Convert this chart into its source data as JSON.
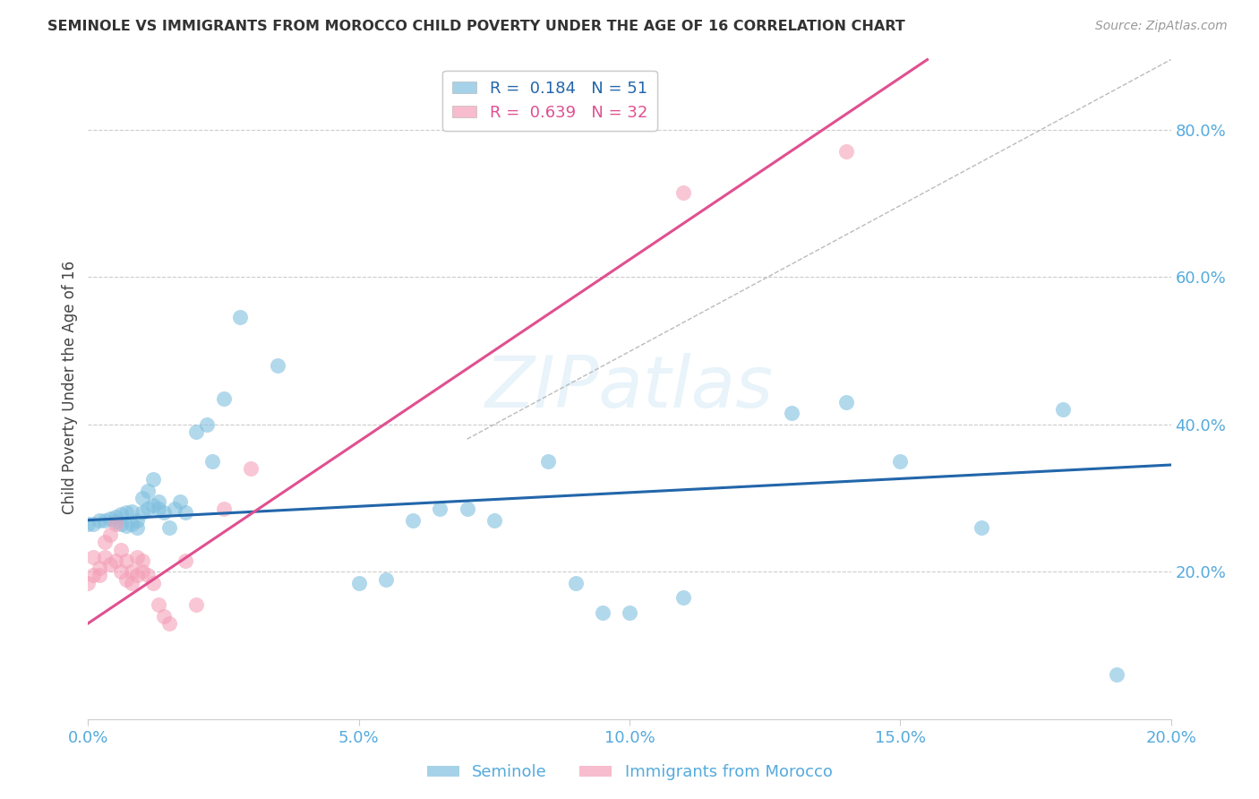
{
  "title": "SEMINOLE VS IMMIGRANTS FROM MOROCCO CHILD POVERTY UNDER THE AGE OF 16 CORRELATION CHART",
  "source": "Source: ZipAtlas.com",
  "ylabel": "Child Poverty Under the Age of 16",
  "xlim": [
    0.0,
    0.2
  ],
  "ylim": [
    0.0,
    0.9
  ],
  "ytick_vals": [
    0.2,
    0.4,
    0.6,
    0.8
  ],
  "ytick_labels": [
    "20.0%",
    "40.0%",
    "60.0%",
    "80.0%"
  ],
  "xtick_vals": [
    0.0,
    0.05,
    0.1,
    0.15,
    0.2
  ],
  "xtick_labels": [
    "0.0%",
    "5.0%",
    "10.0%",
    "15.0%",
    "20.0%"
  ],
  "seminole_R": 0.184,
  "seminole_N": 51,
  "morocco_R": 0.639,
  "morocco_N": 32,
  "seminole_color": "#7fbfdf",
  "morocco_color": "#f4a0b8",
  "seminole_line_color": "#2266aa",
  "morocco_line_color": "#e05090",
  "trend_line_color": "#bbbbbb",
  "background_color": "#ffffff",
  "grid_color": "#cccccc",
  "title_color": "#333333",
  "axis_label_color": "#444444",
  "tick_label_color": "#55aadd",
  "legend_R_color": "#2266aa",
  "legend_R2_color": "#e05090",
  "seminole_trend": [
    0.0,
    0.27,
    0.2,
    0.345
  ],
  "morocco_trend": [
    0.0,
    0.13,
    0.155,
    0.895
  ],
  "diag_trend": [
    0.07,
    0.38,
    0.2,
    0.895
  ],
  "seminole_x": [
    0.0,
    0.001,
    0.002,
    0.003,
    0.004,
    0.005,
    0.005,
    0.006,
    0.006,
    0.007,
    0.007,
    0.008,
    0.008,
    0.009,
    0.009,
    0.01,
    0.01,
    0.011,
    0.011,
    0.012,
    0.012,
    0.013,
    0.013,
    0.014,
    0.015,
    0.016,
    0.017,
    0.018,
    0.02,
    0.022,
    0.023,
    0.025,
    0.028,
    0.035,
    0.05,
    0.055,
    0.06,
    0.065,
    0.07,
    0.075,
    0.085,
    0.09,
    0.095,
    0.1,
    0.11,
    0.13,
    0.14,
    0.15,
    0.165,
    0.18,
    0.19
  ],
  "seminole_y": [
    0.265,
    0.265,
    0.27,
    0.27,
    0.272,
    0.268,
    0.275,
    0.265,
    0.278,
    0.262,
    0.28,
    0.265,
    0.282,
    0.27,
    0.26,
    0.28,
    0.3,
    0.285,
    0.31,
    0.29,
    0.325,
    0.285,
    0.295,
    0.28,
    0.26,
    0.285,
    0.295,
    0.28,
    0.39,
    0.4,
    0.35,
    0.435,
    0.545,
    0.48,
    0.185,
    0.19,
    0.27,
    0.285,
    0.285,
    0.27,
    0.35,
    0.185,
    0.145,
    0.145,
    0.165,
    0.415,
    0.43,
    0.35,
    0.26,
    0.42,
    0.06
  ],
  "morocco_x": [
    0.0,
    0.001,
    0.001,
    0.002,
    0.002,
    0.003,
    0.003,
    0.004,
    0.004,
    0.005,
    0.005,
    0.006,
    0.006,
    0.007,
    0.007,
    0.008,
    0.008,
    0.009,
    0.009,
    0.01,
    0.01,
    0.011,
    0.012,
    0.013,
    0.014,
    0.015,
    0.018,
    0.02,
    0.025,
    0.03,
    0.11,
    0.14
  ],
  "morocco_y": [
    0.185,
    0.22,
    0.195,
    0.205,
    0.195,
    0.24,
    0.22,
    0.25,
    0.21,
    0.265,
    0.215,
    0.23,
    0.2,
    0.215,
    0.19,
    0.2,
    0.185,
    0.195,
    0.22,
    0.215,
    0.2,
    0.195,
    0.185,
    0.155,
    0.14,
    0.13,
    0.215,
    0.155,
    0.285,
    0.34,
    0.715,
    0.77
  ]
}
